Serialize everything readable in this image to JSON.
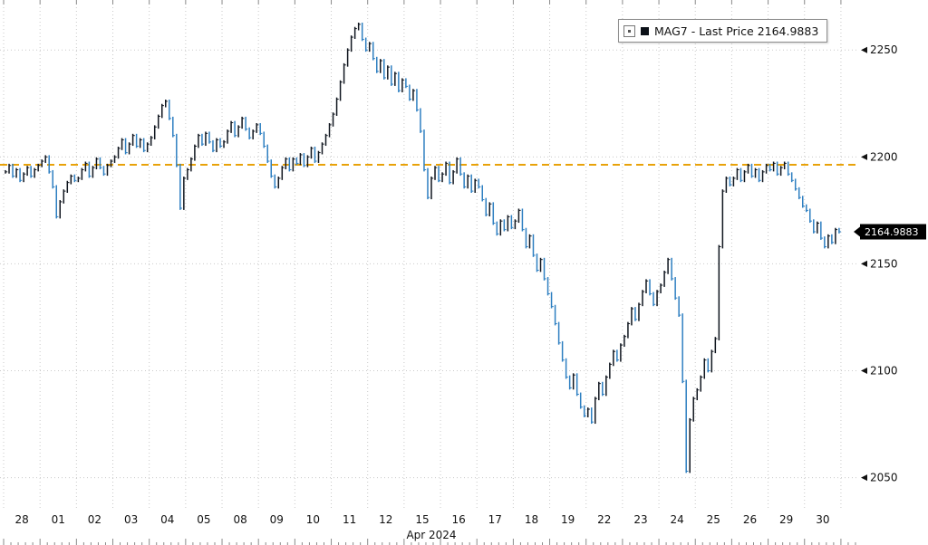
{
  "legend": {
    "label": "MAG7 - Last Price 2164.9883",
    "swatch_color": "#0c1118"
  },
  "last_price_label": "2164.9883",
  "chart_data": {
    "type": "ohlc",
    "title": "MAG7 - Last Price 2164.9883",
    "xlabel": "Apr 2024",
    "ylabel": "",
    "ylim": [
      2035,
      2270
    ],
    "yticks": [
      2050,
      2100,
      2150,
      2200,
      2250
    ],
    "last_price": 2164.9883,
    "ref_line": 2196.3,
    "ref_line_color": "#e8a20a",
    "bar_colors": {
      "up": "#10161f",
      "down": "#2e7fc1"
    },
    "grid": true,
    "legend_position": "top-right",
    "days": [
      {
        "label": "28",
        "values": [
          2193,
          2196,
          2191,
          2194,
          2189,
          2192,
          2195,
          2191,
          2194,
          2196
        ]
      },
      {
        "label": "01",
        "values": [
          2198,
          2200,
          2193,
          2186,
          2172,
          2179,
          2184,
          2188,
          2191,
          2189
        ]
      },
      {
        "label": "02",
        "values": [
          2190,
          2194,
          2197,
          2191,
          2195,
          2199,
          2195,
          2192,
          2196,
          2198
        ]
      },
      {
        "label": "03",
        "values": [
          2200,
          2204,
          2208,
          2202,
          2206,
          2210,
          2205,
          2208,
          2203,
          2206
        ]
      },
      {
        "label": "04",
        "values": [
          2209,
          2214,
          2219,
          2224,
          2226,
          2218,
          2210,
          2196,
          2176,
          2190
        ]
      },
      {
        "label": "05",
        "values": [
          2194,
          2199,
          2205,
          2210,
          2206,
          2211,
          2207,
          2203,
          2208,
          2205
        ]
      },
      {
        "label": "08",
        "values": [
          2207,
          2212,
          2216,
          2210,
          2214,
          2218,
          2213,
          2209,
          2212,
          2215
        ]
      },
      {
        "label": "09",
        "values": [
          2211,
          2205,
          2198,
          2191,
          2186,
          2190,
          2195,
          2199,
          2194,
          2199
        ]
      },
      {
        "label": "10",
        "values": [
          2197,
          2201,
          2196,
          2200,
          2204,
          2198,
          2202,
          2206,
          2210,
          2215
        ]
      },
      {
        "label": "11",
        "values": [
          2220,
          2227,
          2235,
          2243,
          2250,
          2256,
          2260,
          2262,
          2255,
          2250
        ]
      },
      {
        "label": "12",
        "values": [
          2253,
          2246,
          2240,
          2245,
          2237,
          2242,
          2234,
          2239,
          2231,
          2236
        ]
      },
      {
        "label": "15",
        "values": [
          2233,
          2227,
          2231,
          2222,
          2212,
          2194,
          2181,
          2190,
          2195,
          2189
        ]
      },
      {
        "label": "16",
        "values": [
          2192,
          2197,
          2188,
          2193,
          2199,
          2192,
          2186,
          2191,
          2184,
          2189
        ]
      },
      {
        "label": "17",
        "values": [
          2186,
          2180,
          2173,
          2178,
          2169,
          2164,
          2170,
          2166,
          2172,
          2167
        ]
      },
      {
        "label": "18",
        "values": [
          2170,
          2175,
          2166,
          2158,
          2163,
          2154,
          2147,
          2152,
          2143,
          2136
        ]
      },
      {
        "label": "19",
        "values": [
          2130,
          2122,
          2113,
          2105,
          2097,
          2092,
          2098,
          2089,
          2083,
          2079
        ]
      },
      {
        "label": "22",
        "values": [
          2082,
          2076,
          2087,
          2094,
          2089,
          2097,
          2103,
          2109,
          2105,
          2112
        ]
      },
      {
        "label": "23",
        "values": [
          2116,
          2122,
          2129,
          2124,
          2131,
          2137,
          2142,
          2136,
          2131,
          2137
        ]
      },
      {
        "label": "24",
        "values": [
          2140,
          2146,
          2152,
          2143,
          2134,
          2126,
          2095,
          2053,
          2077,
          2087
        ]
      },
      {
        "label": "25",
        "values": [
          2091,
          2097,
          2105,
          2100,
          2109,
          2115,
          2158,
          2184,
          2190,
          2187
        ]
      },
      {
        "label": "26",
        "values": [
          2190,
          2194,
          2189,
          2193,
          2196,
          2191,
          2194,
          2189,
          2193,
          2196
        ]
      },
      {
        "label": "29",
        "values": [
          2194,
          2197,
          2192,
          2195,
          2197,
          2192,
          2189,
          2185,
          2181,
          2177
        ]
      },
      {
        "label": "30",
        "values": [
          2175,
          2170,
          2165,
          2169,
          2162,
          2158,
          2163,
          2160,
          2166,
          2165
        ]
      }
    ]
  }
}
